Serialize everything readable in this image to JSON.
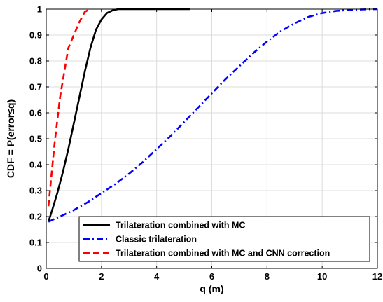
{
  "chart_data": {
    "type": "line",
    "xlabel": "q (m)",
    "ylabel": "CDF = P(error≤q)",
    "xlim": [
      0,
      12
    ],
    "ylim": [
      0,
      1
    ],
    "xticks": [
      0,
      2,
      4,
      6,
      8,
      10,
      12
    ],
    "yticks": [
      0,
      0.1,
      0.2,
      0.3,
      0.4,
      0.5,
      0.6,
      0.7,
      0.8,
      0.9,
      1
    ],
    "xtick_labels": [
      "0",
      "2",
      "4",
      "6",
      "8",
      "10",
      "12"
    ],
    "ytick_labels": [
      "0",
      "0.1",
      "0.2",
      "0.3",
      "0.4",
      "0.5",
      "0.6",
      "0.7",
      "0.8",
      "0.9",
      "1"
    ],
    "grid": true,
    "legend_position": "bottom-right",
    "series": [
      {
        "name": "Trilateration combined with MC",
        "color": "#000000",
        "style": "solid",
        "x": [
          0.08,
          0.2,
          0.4,
          0.6,
          0.8,
          1.0,
          1.2,
          1.4,
          1.6,
          1.8,
          2.0,
          2.2,
          2.4,
          2.6,
          2.8,
          3.0,
          3.5,
          4.0,
          4.5,
          5.2
        ],
        "y": [
          0.18,
          0.22,
          0.29,
          0.37,
          0.46,
          0.56,
          0.66,
          0.76,
          0.85,
          0.92,
          0.96,
          0.985,
          0.995,
          1.0,
          1.0,
          1.0,
          1.0,
          1.0,
          1.0,
          1.0
        ]
      },
      {
        "name": "Classic trilateration",
        "color": "#0000ff",
        "style": "dashdot",
        "x": [
          0.08,
          0.5,
          1.0,
          1.5,
          2.0,
          2.5,
          3.0,
          3.5,
          4.0,
          4.5,
          5.0,
          5.5,
          6.0,
          6.5,
          7.0,
          7.5,
          8.0,
          8.5,
          9.0,
          9.5,
          10.0,
          10.5,
          11.0,
          11.5,
          12.0
        ],
        "y": [
          0.18,
          0.2,
          0.225,
          0.255,
          0.29,
          0.325,
          0.365,
          0.41,
          0.46,
          0.51,
          0.565,
          0.62,
          0.675,
          0.73,
          0.78,
          0.83,
          0.875,
          0.915,
          0.945,
          0.97,
          0.985,
          0.993,
          0.997,
          0.999,
          1.0
        ]
      },
      {
        "name": "Trilateration combined with MC and CNN correction",
        "color": "#ff0000",
        "style": "dashed",
        "x": [
          0.08,
          0.3,
          0.5,
          0.8,
          1.0,
          1.2,
          1.4,
          1.6
        ],
        "y": [
          0.24,
          0.48,
          0.66,
          0.85,
          0.9,
          0.95,
          0.99,
          1.0
        ]
      }
    ]
  }
}
